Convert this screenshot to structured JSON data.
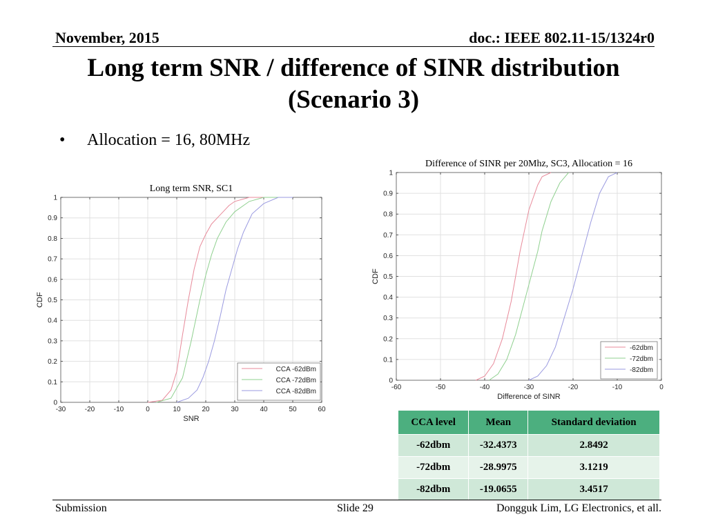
{
  "header": {
    "date": "November, 2015",
    "doc": "doc.: IEEE 802.11-15/1324r0"
  },
  "title": {
    "line1": "Long term SNR / difference of SINR distribution",
    "line2": "(Scenario 3)"
  },
  "bullet": {
    "marker": "•",
    "text": "Allocation = 16, 80MHz"
  },
  "colors": {
    "series1": "#e88a9a",
    "series2": "#8fd08f",
    "series3": "#9a9ae0",
    "table_header": "#4caf7f",
    "table_row_a": "#cfe8d8",
    "table_row_b": "#e6f3ea"
  },
  "chart_data": [
    {
      "type": "line",
      "title": "Long term SNR, SC1",
      "xlabel": "SNR",
      "ylabel": "CDF",
      "xlim": [
        -30,
        60
      ],
      "ylim": [
        0,
        1
      ],
      "xticks": [
        -30,
        -20,
        -10,
        0,
        10,
        20,
        30,
        40,
        50,
        60
      ],
      "yticks": [
        0,
        0.1,
        0.2,
        0.3,
        0.4,
        0.5,
        0.6,
        0.7,
        0.8,
        0.9,
        1
      ],
      "grid": true,
      "legend_position": "bottom-right",
      "series": [
        {
          "name": "CCA -62dBm",
          "x": [
            0,
            5,
            8,
            10,
            12,
            14,
            16,
            18,
            20,
            22,
            24,
            26,
            28,
            30,
            35,
            40
          ],
          "y": [
            0,
            0.01,
            0.06,
            0.15,
            0.33,
            0.5,
            0.65,
            0.76,
            0.82,
            0.87,
            0.9,
            0.93,
            0.96,
            0.98,
            1.0,
            1.0
          ]
        },
        {
          "name": "CCA -72dBm",
          "x": [
            3,
            8,
            12,
            15,
            18,
            20,
            22,
            24,
            27,
            30,
            35,
            40,
            45
          ],
          "y": [
            0,
            0.02,
            0.12,
            0.3,
            0.5,
            0.62,
            0.72,
            0.8,
            0.88,
            0.93,
            0.98,
            1.0,
            1.0
          ]
        },
        {
          "name": "CCA -82dBm",
          "x": [
            10,
            14,
            17,
            19,
            21,
            23,
            25,
            27,
            29,
            31,
            33,
            36,
            40,
            45,
            50
          ],
          "y": [
            0,
            0.02,
            0.06,
            0.12,
            0.2,
            0.3,
            0.42,
            0.55,
            0.65,
            0.75,
            0.83,
            0.92,
            0.97,
            1.0,
            1.0
          ]
        }
      ]
    },
    {
      "type": "line",
      "title": "Difference of SINR per 20Mhz, SC3, Allocation = 16",
      "xlabel": "Difference of SINR",
      "ylabel": "CDF",
      "xlim": [
        -60,
        0
      ],
      "ylim": [
        0,
        1
      ],
      "xticks": [
        -60,
        -50,
        -40,
        -30,
        -20,
        -10,
        0
      ],
      "yticks": [
        0,
        0.1,
        0.2,
        0.3,
        0.4,
        0.5,
        0.6,
        0.7,
        0.8,
        0.9,
        1
      ],
      "grid": true,
      "legend_position": "bottom-right",
      "series": [
        {
          "name": "-62dbm",
          "x": [
            -42,
            -40,
            -38,
            -36,
            -34,
            -33,
            -32,
            -31,
            -30,
            -28,
            -27,
            -25
          ],
          "y": [
            0,
            0.02,
            0.08,
            0.2,
            0.38,
            0.5,
            0.62,
            0.72,
            0.82,
            0.94,
            0.98,
            1.0
          ]
        },
        {
          "name": "-72dbm",
          "x": [
            -39,
            -37,
            -35,
            -33,
            -31,
            -30,
            -29,
            -28,
            -27,
            -25,
            -23,
            -21
          ],
          "y": [
            0,
            0.03,
            0.1,
            0.22,
            0.38,
            0.46,
            0.54,
            0.62,
            0.72,
            0.86,
            0.95,
            1.0
          ]
        },
        {
          "name": "-82dbm",
          "x": [
            -30,
            -28,
            -26,
            -24,
            -22,
            -20,
            -19,
            -18,
            -16,
            -14,
            -12,
            -10
          ],
          "y": [
            0,
            0.02,
            0.07,
            0.16,
            0.3,
            0.44,
            0.52,
            0.6,
            0.76,
            0.9,
            0.98,
            1.0
          ]
        }
      ]
    }
  ],
  "table": {
    "headers": [
      "CCA level",
      "Mean",
      "Standard deviation"
    ],
    "rows": [
      [
        "-62dbm",
        "-32.4373",
        "2.8492"
      ],
      [
        "-72dbm",
        "-28.9975",
        "3.1219"
      ],
      [
        "-82dbm",
        "-19.0655",
        "3.4517"
      ]
    ]
  },
  "footer": {
    "left": "Submission",
    "center": "Slide 29",
    "right": "Dongguk Lim, LG Electronics, et all."
  }
}
